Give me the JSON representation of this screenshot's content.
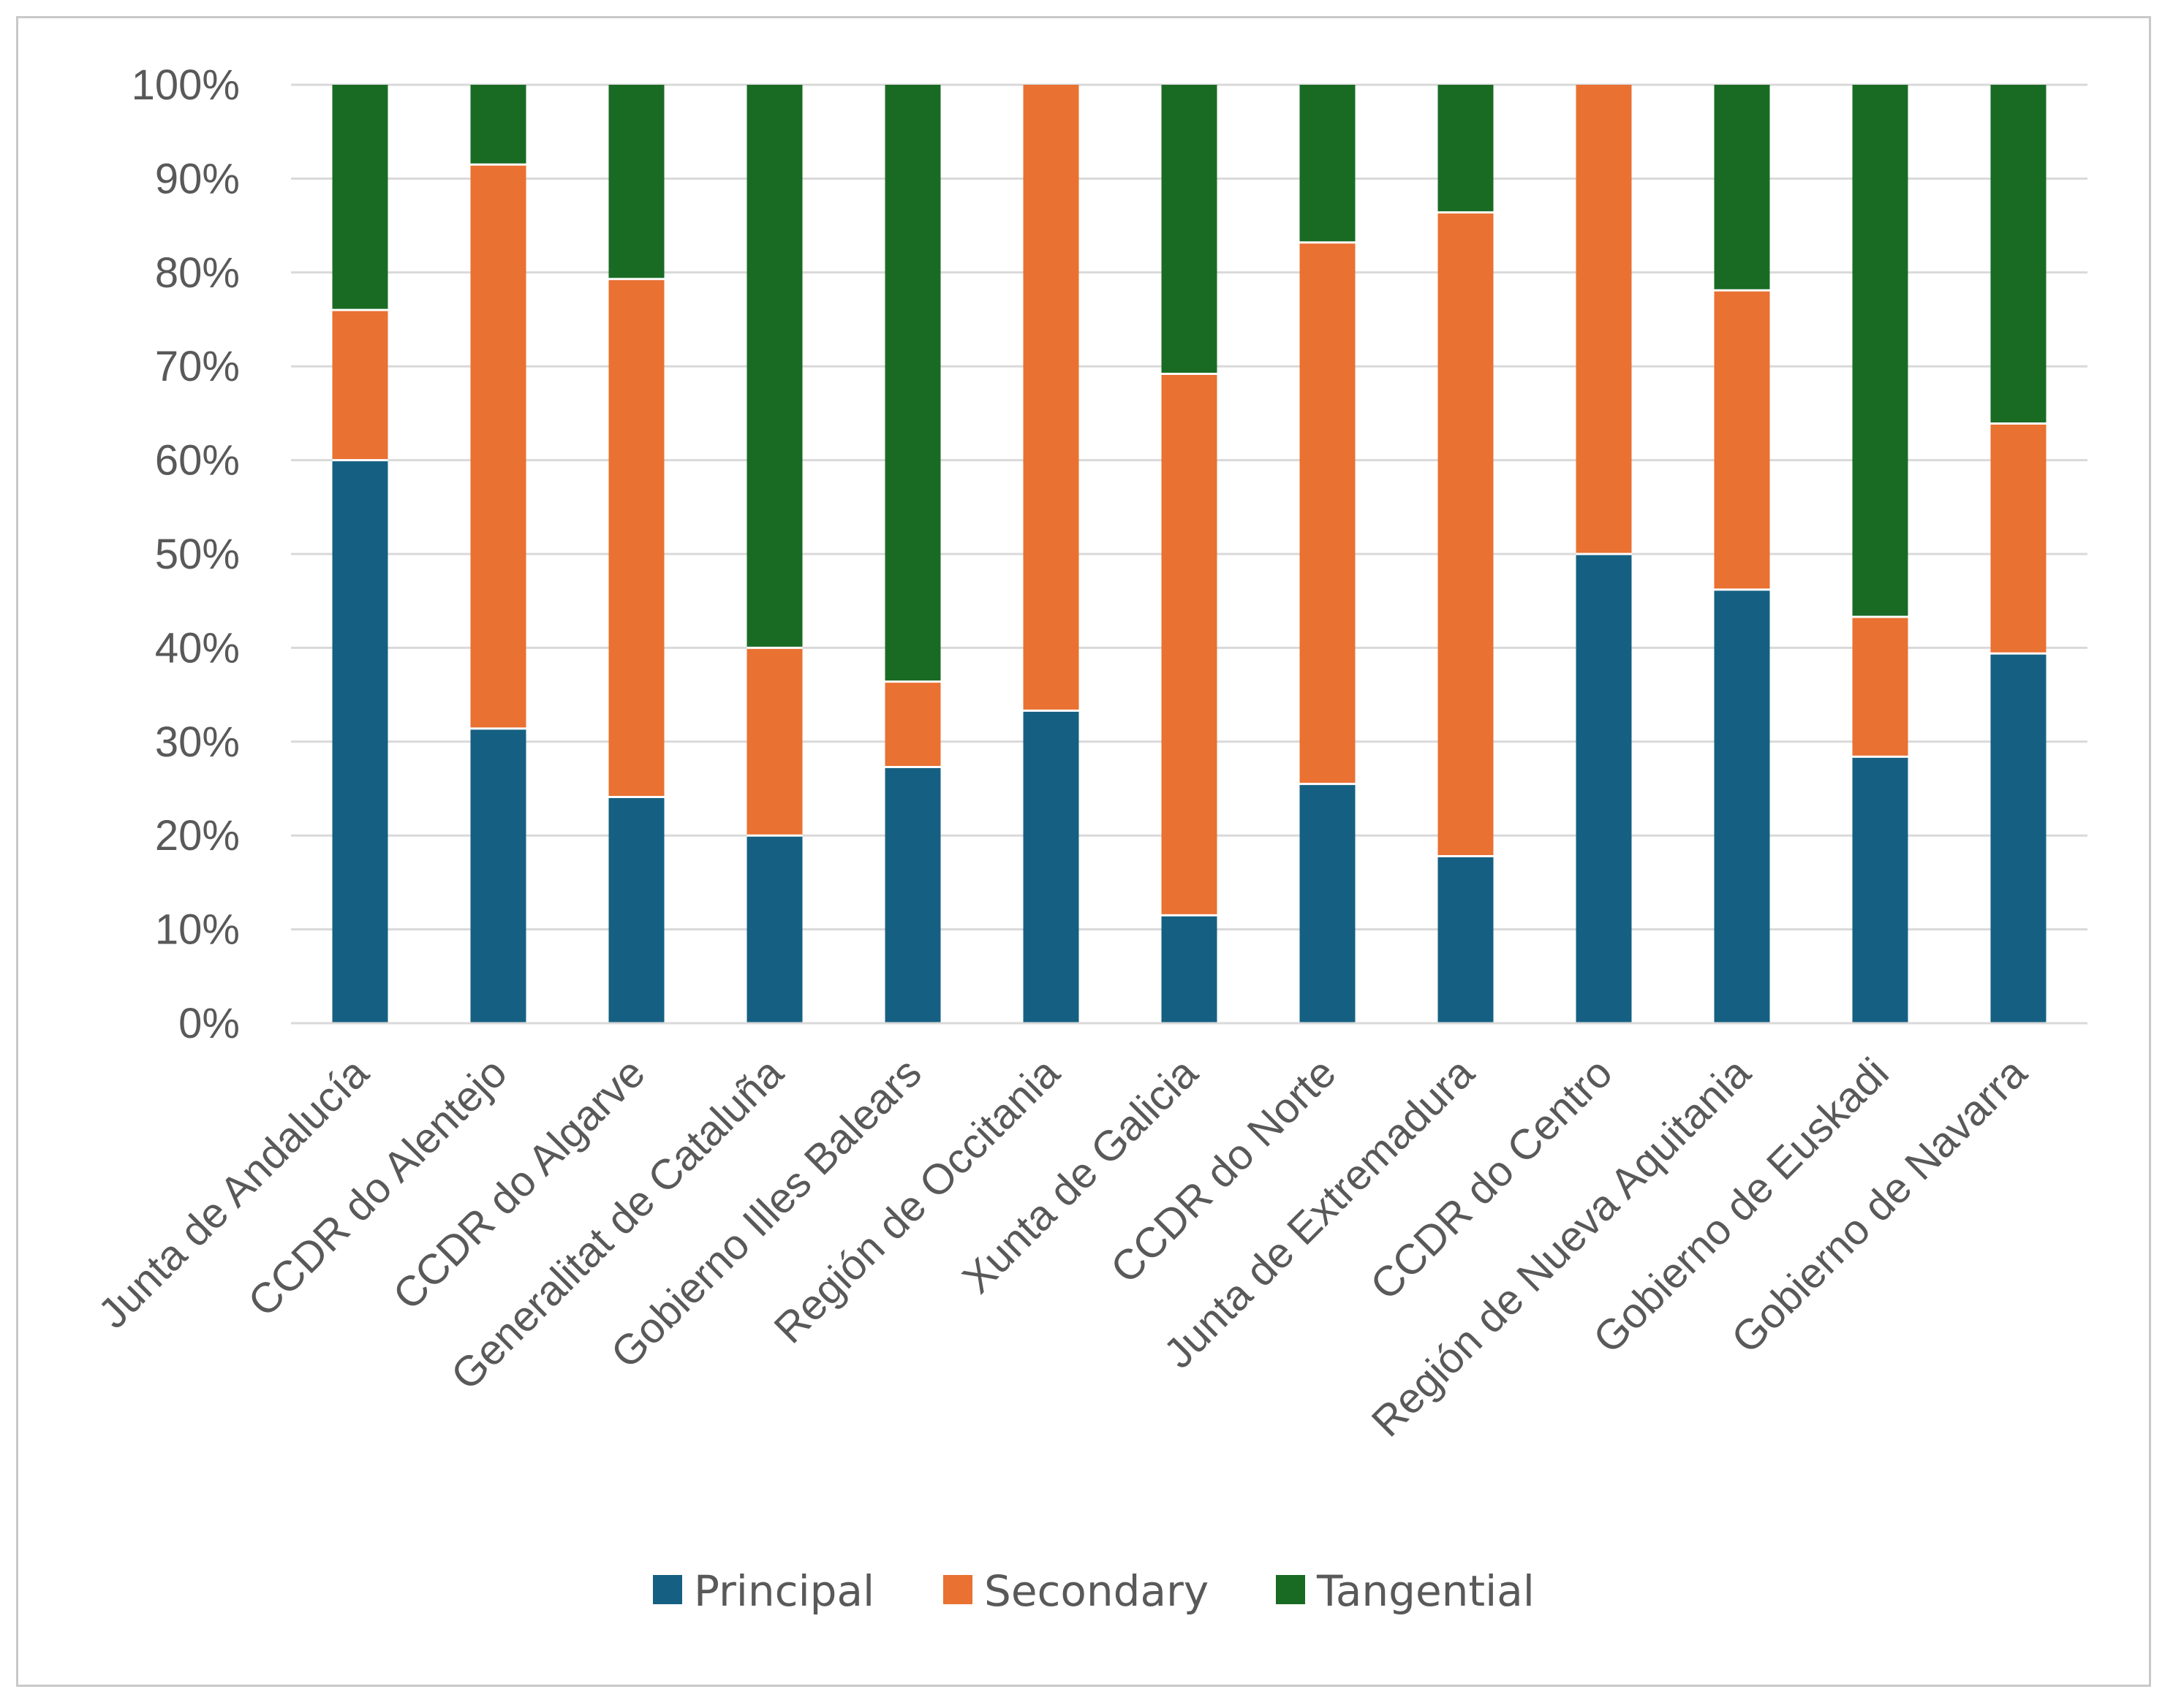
{
  "chart_data": {
    "type": "bar",
    "stacked": true,
    "normalized": true,
    "categories": [
      "Junta de Andalucía",
      "CCDR do Alentejo",
      "CCDR do Algarve",
      "Generalitat de Cataluña",
      "Gobierno Illes Balears",
      "Región de Occitania",
      "Xunta de Galicia",
      "CCDR do Norte",
      "Junta de Extremadura",
      "CCDR do Centro",
      "Región de Nueva Aquitania",
      "Gobierno de Euskadi",
      "Gobierno de Navarra"
    ],
    "series": [
      {
        "name": "Principal",
        "color": "#156082",
        "values": [
          60,
          31.4,
          24.1,
          20,
          27.3,
          33.3,
          11.5,
          25.5,
          17.8,
          50,
          46.2,
          28.4,
          39.4
        ]
      },
      {
        "name": "Secondary",
        "color": "#E97132",
        "values": [
          16,
          60.1,
          55.2,
          20,
          9.1,
          66.7,
          57.7,
          57.7,
          68.6,
          50,
          31.9,
          14.9,
          24.5
        ]
      },
      {
        "name": "Tangential",
        "color": "#196B24",
        "values": [
          24,
          8.5,
          20.7,
          60,
          63.6,
          0,
          30.8,
          16.8,
          13.6,
          0,
          21.9,
          56.7,
          36.1
        ]
      }
    ],
    "yticks": [
      "0%",
      "10%",
      "20%",
      "30%",
      "40%",
      "50%",
      "60%",
      "70%",
      "80%",
      "90%",
      "100%"
    ],
    "ylim": [
      0,
      100
    ],
    "grid": true,
    "legend": "bottom",
    "title": "",
    "xlabel": "",
    "ylabel": ""
  }
}
